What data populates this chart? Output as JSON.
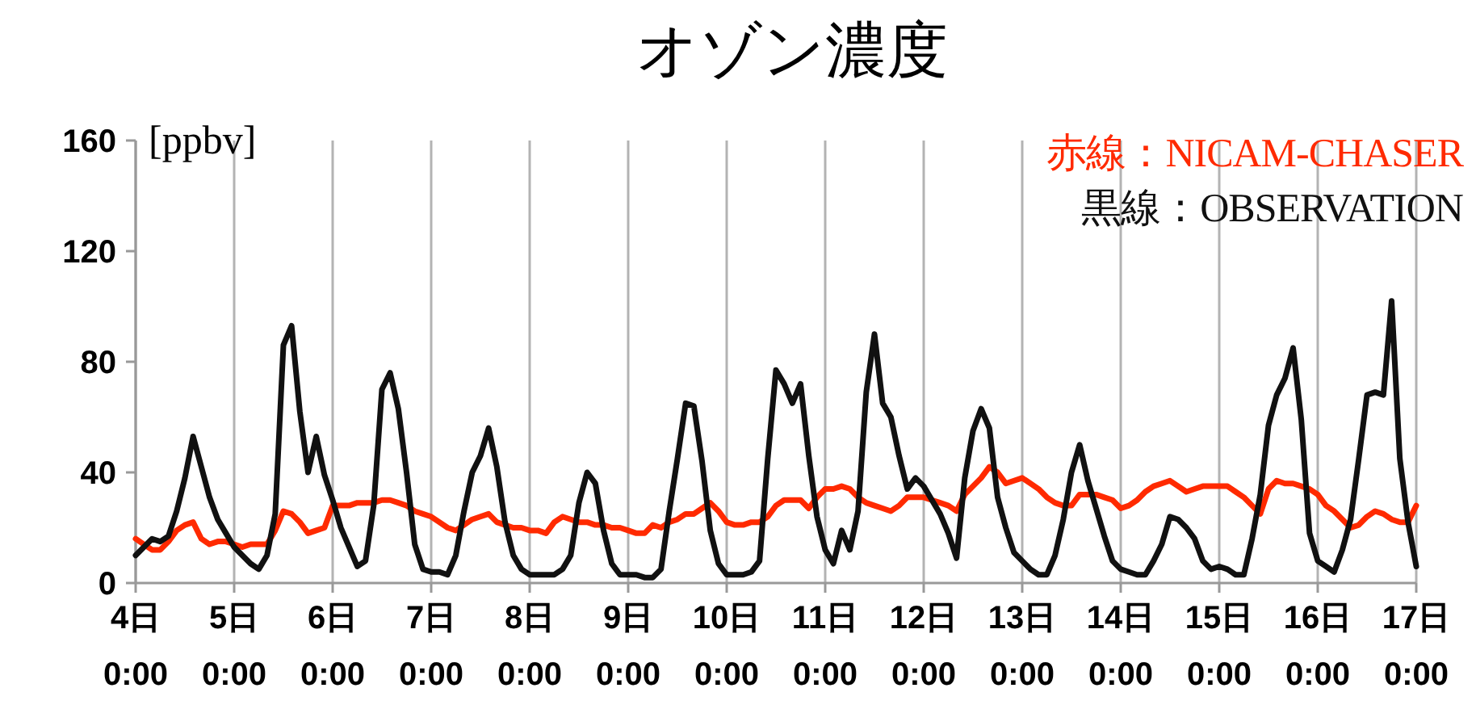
{
  "chart_data": {
    "type": "line",
    "title": "オゾン濃度",
    "ylabel": "[ppbv]",
    "ylim": [
      0,
      160
    ],
    "yticks": [
      0,
      40,
      80,
      120,
      160
    ],
    "categories": [
      "4日\n0:00",
      null,
      null,
      null,
      null,
      null,
      null,
      null,
      null,
      null,
      null,
      null,
      "5日\n0:00",
      null,
      null,
      null,
      null,
      null,
      null,
      null,
      null,
      null,
      null,
      null,
      "6日\n0:00",
      null,
      null,
      null,
      null,
      null,
      null,
      null,
      null,
      null,
      null,
      null,
      "7日\n0:00",
      null,
      null,
      null,
      null,
      null,
      null,
      null,
      null,
      null,
      null,
      null,
      "8日\n0:00",
      null,
      null,
      null,
      null,
      null,
      null,
      null,
      null,
      null,
      null,
      null,
      "9日\n0:00",
      null,
      null,
      null,
      null,
      null,
      null,
      null,
      null,
      null,
      null,
      null,
      "10日\n0:00",
      null,
      null,
      null,
      null,
      null,
      null,
      null,
      null,
      null,
      null,
      null,
      "11日\n0:00",
      null,
      null,
      null,
      null,
      null,
      null,
      null,
      null,
      null,
      null,
      null,
      "12日\n0:00",
      null,
      null,
      null,
      null,
      null,
      null,
      null,
      null,
      null,
      null,
      null,
      "13日\n0:00",
      null,
      null,
      null,
      null,
      null,
      null,
      null,
      null,
      null,
      null,
      null,
      "14日\n0:00",
      null,
      null,
      null,
      null,
      null,
      null,
      null,
      null,
      null,
      null,
      null,
      "15日\n0:00",
      null,
      null,
      null,
      null,
      null,
      null,
      null,
      null,
      null,
      null,
      null,
      "16日\n0:00",
      null,
      null,
      null,
      null,
      null,
      null,
      null,
      null,
      null,
      null,
      null,
      "17日\n0:00"
    ],
    "grid": "x",
    "legend": "top right",
    "series": [
      {
        "name": "赤線：NICAM-CHASER",
        "color": "#ff2a00",
        "values": [
          16,
          14,
          12,
          12,
          15,
          19,
          21,
          22,
          16,
          14,
          15,
          15,
          14,
          13,
          14,
          14,
          14,
          19,
          26,
          25,
          22,
          18,
          19,
          20,
          28,
          28,
          28,
          29,
          29,
          29,
          30,
          30,
          29,
          28,
          26,
          25,
          24,
          22,
          20,
          19,
          21,
          23,
          24,
          25,
          22,
          21,
          20,
          20,
          19,
          19,
          18,
          22,
          24,
          23,
          22,
          22,
          21,
          21,
          20,
          20,
          19,
          18,
          18,
          21,
          20,
          22,
          23,
          25,
          25,
          27,
          29,
          26,
          22,
          21,
          21,
          22,
          22,
          24,
          28,
          30,
          30,
          30,
          27,
          31,
          34,
          34,
          35,
          34,
          31,
          29,
          28,
          27,
          26,
          28,
          31,
          31,
          31,
          30,
          29,
          28,
          26,
          32,
          35,
          38,
          42,
          40,
          36,
          37,
          38,
          36,
          34,
          31,
          29,
          28,
          28,
          32,
          32,
          32,
          31,
          30,
          27,
          28,
          30,
          33,
          35,
          36,
          37,
          35,
          33,
          34,
          35,
          35,
          35,
          35,
          33,
          31,
          28,
          25,
          34,
          37,
          36,
          36,
          35,
          34,
          32,
          28,
          26,
          23,
          20,
          21,
          24,
          26,
          25,
          23,
          22,
          22,
          28
        ]
      },
      {
        "name": "黒線：OBSERVATION",
        "color": "#111111",
        "values": [
          10,
          13,
          16,
          15,
          17,
          26,
          38,
          53,
          42,
          31,
          23,
          18,
          13,
          10,
          7,
          5,
          10,
          25,
          86,
          93,
          62,
          40,
          53,
          39,
          30,
          20,
          13,
          6,
          8,
          28,
          70,
          76,
          63,
          40,
          14,
          5,
          4,
          4,
          3,
          10,
          26,
          40,
          46,
          56,
          42,
          22,
          10,
          5,
          3,
          3,
          3,
          3,
          5,
          10,
          29,
          40,
          36,
          19,
          7,
          3,
          3,
          3,
          2,
          2,
          5,
          26,
          45,
          65,
          64,
          44,
          19,
          7,
          3,
          3,
          3,
          4,
          8,
          45,
          77,
          72,
          65,
          72,
          46,
          24,
          12,
          7,
          19,
          12,
          26,
          69,
          90,
          65,
          60,
          46,
          34,
          38,
          35,
          30,
          25,
          18,
          9,
          38,
          55,
          63,
          56,
          31,
          20,
          11,
          8,
          5,
          3,
          3,
          10,
          23,
          40,
          50,
          37,
          27,
          17,
          8,
          5,
          4,
          3,
          3,
          8,
          14,
          24,
          23,
          20,
          16,
          8,
          5,
          6,
          5,
          3,
          3,
          16,
          32,
          57,
          68,
          74,
          85,
          59,
          18,
          8,
          6,
          4,
          12,
          23,
          45,
          68,
          69,
          68,
          102,
          45,
          22,
          6
        ]
      }
    ]
  }
}
